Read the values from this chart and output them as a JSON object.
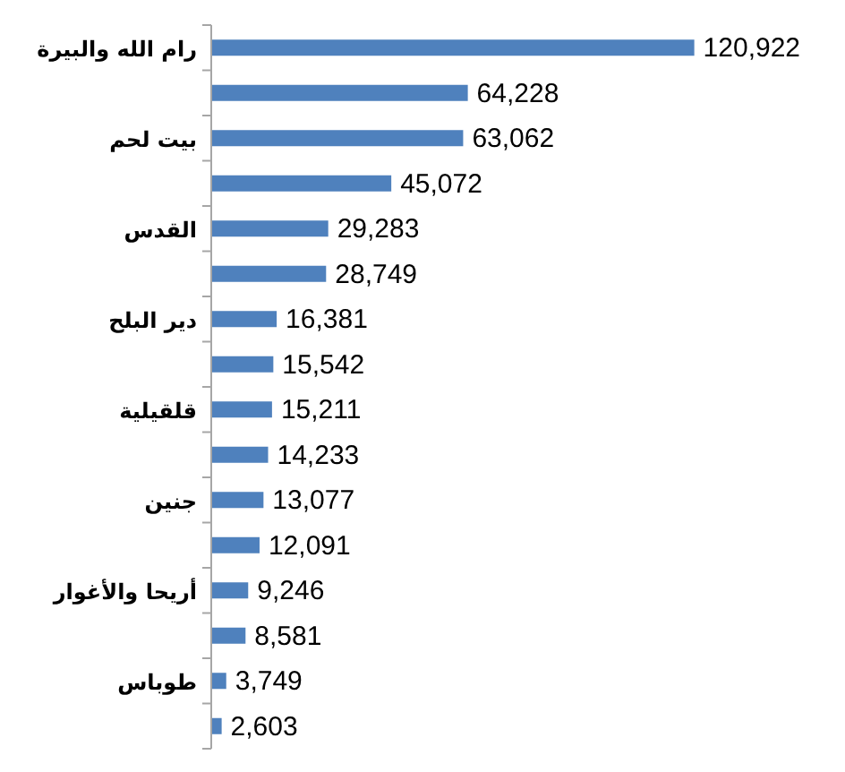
{
  "chart_data": {
    "type": "bar",
    "orientation": "horizontal",
    "color": "#4f81bd",
    "categories": [
      "رام الله والبيرة",
      null,
      "بيت لحم",
      null,
      "القدس",
      null,
      "دير البلح",
      null,
      "قلقيلية",
      null,
      "جنين",
      null,
      "أريحا والأغوار",
      null,
      "طوباس",
      null
    ],
    "values": [
      120922,
      64228,
      63062,
      45072,
      29283,
      28749,
      16381,
      15542,
      15211,
      14233,
      13077,
      12091,
      9246,
      8581,
      3749,
      2603
    ],
    "value_labels": [
      "120,922",
      "64,228",
      "63,062",
      "45,072",
      "29,283",
      "28,749",
      "16,381",
      "15,542",
      "15,211",
      "14,233",
      "13,077",
      "12,091",
      "9,246",
      "8,581",
      "3,749",
      "2,603"
    ]
  }
}
